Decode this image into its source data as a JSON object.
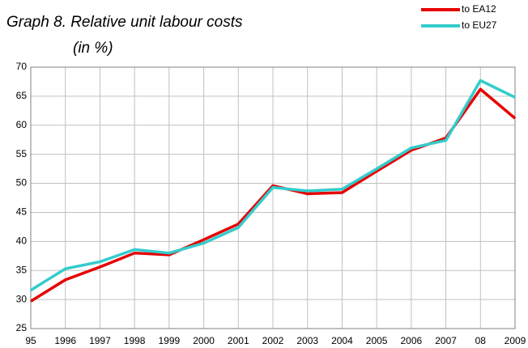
{
  "chart_data": {
    "type": "line",
    "title": "Graph 8. Relative unit labour costs",
    "subtitle": "(in %)",
    "categories": [
      "95",
      "1996",
      "1997",
      "1998",
      "1999",
      "2000",
      "2001",
      "2002",
      "2003",
      "2004",
      "2005",
      "2006",
      "2007",
      "08",
      "2009"
    ],
    "series": [
      {
        "name": "to EA12",
        "color": "#e60000",
        "values": [
          29.7,
          33.4,
          35.6,
          38.0,
          37.7,
          40.3,
          43.0,
          49.6,
          48.2,
          48.4,
          52.1,
          55.7,
          57.8,
          66.2,
          61.2
        ]
      },
      {
        "name": "to EU27",
        "color": "#33cccc",
        "values": [
          31.6,
          35.3,
          36.5,
          38.6,
          38.0,
          39.7,
          42.4,
          49.3,
          48.7,
          49.0,
          52.5,
          56.1,
          57.4,
          67.7,
          64.8
        ]
      }
    ],
    "ylim": [
      25,
      70
    ],
    "yticks": [
      25,
      30,
      35,
      40,
      45,
      50,
      55,
      60,
      65,
      70
    ],
    "grid": true,
    "legend": "top-right"
  }
}
